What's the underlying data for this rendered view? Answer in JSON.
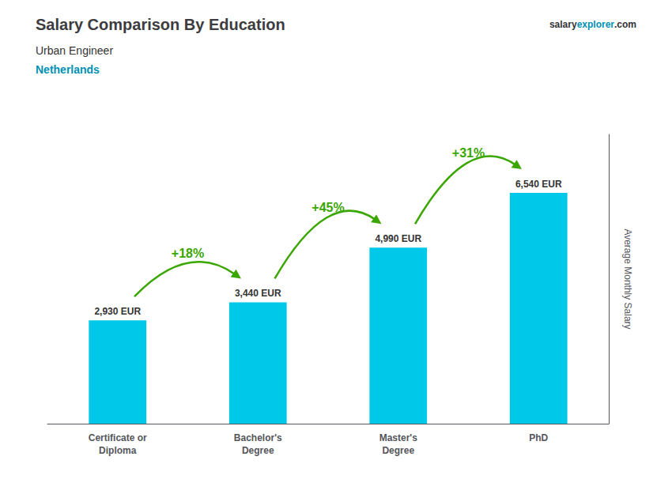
{
  "chart_data": {
    "type": "bar",
    "title": "Salary Comparison By Education",
    "subtitle": [
      "Urban Engineer",
      "Netherlands"
    ],
    "website": [
      "salary",
      "explorer",
      ".com"
    ],
    "ylabel": "Average Monthly Salary",
    "categories": [
      "Certificate or\nDiploma",
      "Bachelor's\nDegree",
      "Master's\nDegree",
      "PhD"
    ],
    "values": [
      2930,
      3440,
      4990,
      6540
    ],
    "value_labels": [
      "2,930 EUR",
      "3,440 EUR",
      "4,990 EUR",
      "6,540 EUR"
    ],
    "data_labels": true,
    "color": "#00c8e8",
    "annotations": [
      {
        "text": "+18%",
        "from": "Certificate or\nDiploma",
        "to": "Bachelor's\nDegree"
      },
      {
        "text": "+45%",
        "from": "Bachelor's\nDegree",
        "to": "Master's\nDegree"
      },
      {
        "text": "+31%",
        "from": "Master's\nDegree",
        "to": "PhD"
      }
    ],
    "ylim": [
      0,
      8200
    ],
    "tick_labels": "x",
    "grid": false
  }
}
